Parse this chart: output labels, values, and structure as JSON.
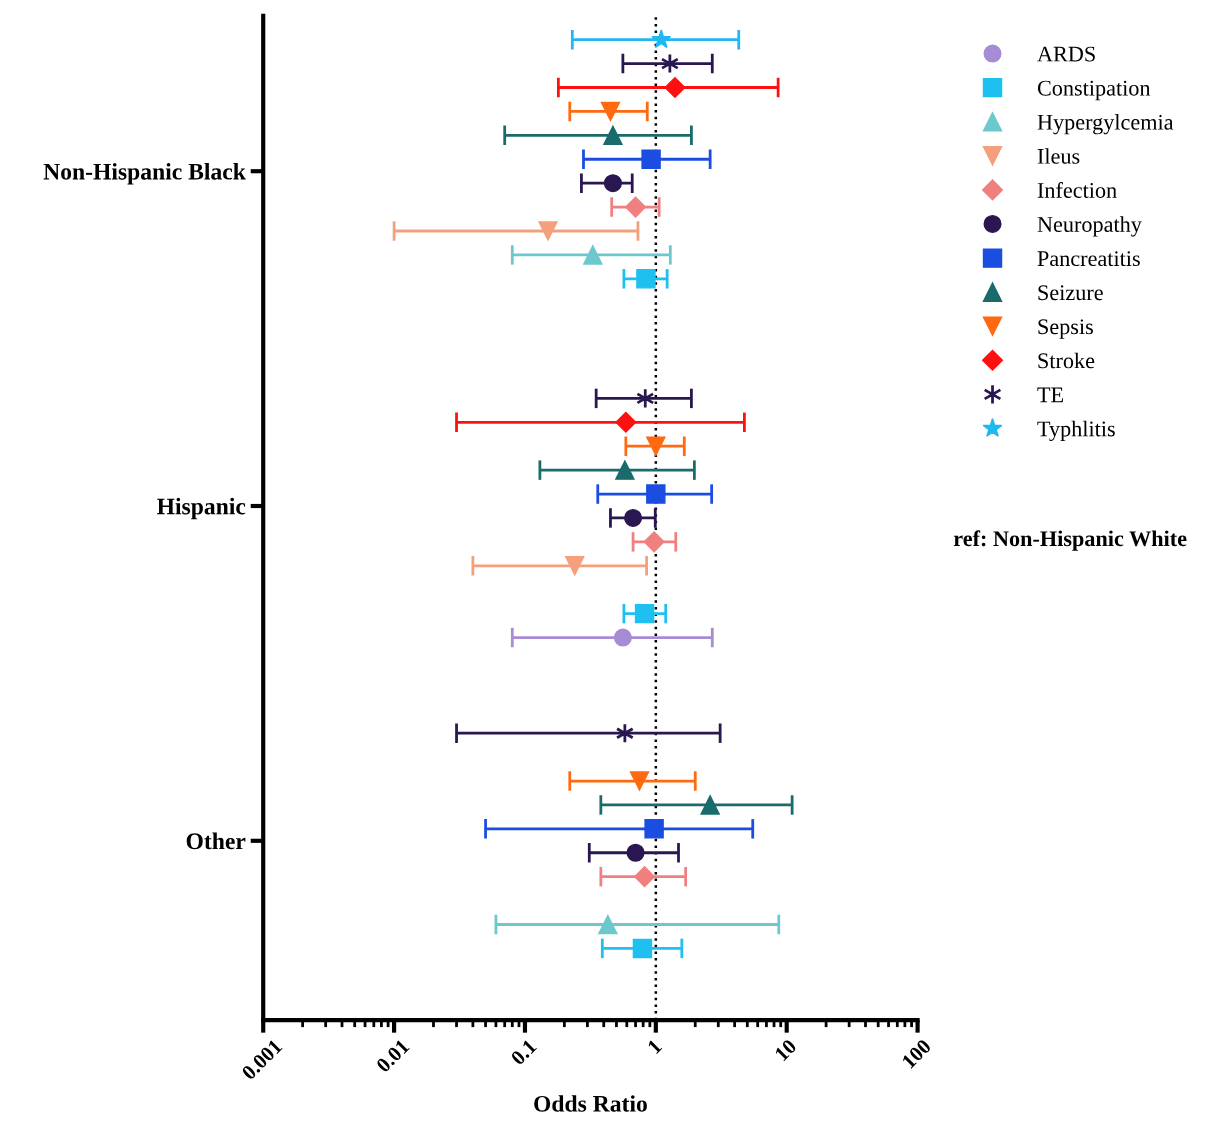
{
  "chart_data": {
    "type": "scatter",
    "orientation": "horizontal",
    "xlabel": "Odds Ratio",
    "log": "x",
    "grid": false,
    "legend": "right",
    "xlim": [
      0.001,
      100
    ],
    "xticks": [
      0.001,
      0.01,
      0.1,
      1,
      10,
      100
    ],
    "categories": [
      null,
      null,
      null,
      null,
      null,
      null,
      null,
      null,
      null,
      null,
      null,
      "Non-Hispanic Black",
      null,
      null,
      null,
      null,
      null,
      null,
      null,
      null,
      null,
      null,
      null,
      null,
      null,
      null,
      null,
      null,
      null,
      null,
      null,
      null,
      null,
      null,
      null,
      null,
      null,
      null,
      null,
      "Hispanic",
      null,
      null,
      null,
      null,
      null,
      null,
      null,
      null,
      null,
      null,
      null,
      null,
      null,
      null,
      null,
      null,
      null,
      null,
      null,
      null,
      null,
      null,
      null,
      null,
      null,
      null,
      null,
      "Other",
      null,
      null,
      null,
      null,
      null,
      null,
      null,
      null,
      null
    ],
    "ref_lines": [
      {
        "axis": "x",
        "value": 1,
        "label": null,
        "color": "#000000",
        "line_style": "dotted"
      }
    ],
    "annotations": [
      "ref: Non-Hispanic White"
    ],
    "series": [
      {
        "name": "ARDS",
        "color": "#a78bd4",
        "marker": "circle",
        "values": [
          null,
          null,
          null,
          null,
          null,
          null,
          null,
          null,
          null,
          null,
          null,
          null,
          null,
          null,
          null,
          null,
          null,
          null,
          null,
          null,
          null,
          null,
          null,
          null,
          null,
          null,
          null,
          null,
          null,
          null,
          null,
          null,
          null,
          null,
          null,
          null,
          null,
          null,
          null,
          null,
          null,
          null,
          null,
          null,
          null,
          null,
          null,
          null,
          null,
          null,
          0.56,
          null,
          null,
          null,
          null,
          null,
          null,
          null,
          null,
          null,
          null,
          null,
          null,
          null,
          null,
          null,
          null,
          null,
          null,
          null,
          null,
          null,
          null,
          null,
          null,
          null,
          null
        ],
        "errors": [
          null,
          null,
          null,
          null,
          null,
          null,
          null,
          null,
          null,
          null,
          null,
          null,
          null,
          null,
          null,
          null,
          null,
          null,
          null,
          null,
          null,
          null,
          null,
          null,
          null,
          null,
          null,
          null,
          null,
          null,
          null,
          null,
          null,
          null,
          null,
          null,
          null,
          null,
          null,
          null,
          null,
          null,
          null,
          null,
          null,
          null,
          null,
          null,
          null,
          null,
          [
            0.08,
            2.7
          ],
          null,
          null,
          null,
          null,
          null,
          null,
          null,
          null,
          null,
          null,
          null,
          null,
          null,
          null,
          null,
          null,
          null,
          null,
          null,
          null,
          null,
          null,
          null,
          null,
          null,
          null
        ]
      },
      {
        "name": "Constipation",
        "color": "#1ec0f0",
        "marker": "square",
        "values": [
          null,
          null,
          null,
          null,
          null,
          null,
          null,
          null,
          null,
          null,
          null,
          null,
          null,
          null,
          null,
          null,
          null,
          null,
          null,
          null,
          0.84,
          null,
          null,
          null,
          null,
          null,
          null,
          null,
          null,
          null,
          null,
          null,
          null,
          null,
          null,
          null,
          null,
          null,
          null,
          null,
          null,
          null,
          null,
          null,
          null,
          null,
          null,
          null,
          0.82,
          null,
          null,
          null,
          null,
          null,
          null,
          null,
          null,
          null,
          null,
          null,
          null,
          null,
          null,
          null,
          null,
          null,
          null,
          null,
          null,
          null,
          null,
          null,
          null,
          null,
          null,
          null,
          0.79
        ],
        "errors": [
          null,
          null,
          null,
          null,
          null,
          null,
          null,
          null,
          null,
          null,
          null,
          null,
          null,
          null,
          null,
          null,
          null,
          null,
          null,
          null,
          [
            0.57,
            1.22
          ],
          null,
          null,
          null,
          null,
          null,
          null,
          null,
          null,
          null,
          null,
          null,
          null,
          null,
          null,
          null,
          null,
          null,
          null,
          null,
          null,
          null,
          null,
          null,
          null,
          null,
          null,
          null,
          [
            0.57,
            1.19
          ],
          null,
          null,
          null,
          null,
          null,
          null,
          null,
          null,
          null,
          null,
          null,
          null,
          null,
          null,
          null,
          null,
          null,
          null,
          null,
          null,
          null,
          null,
          null,
          null,
          null,
          null,
          null,
          [
            0.39,
            1.58
          ]
        ]
      },
      {
        "name": "Hypergylcemia",
        "color": "#6cc8cc",
        "marker": "triangle",
        "values": [
          null,
          null,
          null,
          null,
          null,
          null,
          null,
          null,
          null,
          null,
          null,
          null,
          null,
          null,
          null,
          null,
          null,
          null,
          0.33,
          null,
          null,
          null,
          null,
          null,
          null,
          null,
          null,
          null,
          null,
          null,
          null,
          null,
          null,
          null,
          null,
          null,
          null,
          null,
          null,
          null,
          null,
          null,
          null,
          null,
          null,
          null,
          null,
          null,
          null,
          null,
          null,
          null,
          null,
          null,
          null,
          null,
          null,
          null,
          null,
          null,
          null,
          null,
          null,
          null,
          null,
          null,
          null,
          null,
          null,
          null,
          null,
          null,
          null,
          null,
          0.43,
          null,
          null
        ],
        "errors": [
          null,
          null,
          null,
          null,
          null,
          null,
          null,
          null,
          null,
          null,
          null,
          null,
          null,
          null,
          null,
          null,
          null,
          null,
          [
            0.08,
            1.29
          ],
          null,
          null,
          null,
          null,
          null,
          null,
          null,
          null,
          null,
          null,
          null,
          null,
          null,
          null,
          null,
          null,
          null,
          null,
          null,
          null,
          null,
          null,
          null,
          null,
          null,
          null,
          null,
          null,
          null,
          null,
          null,
          null,
          null,
          null,
          null,
          null,
          null,
          null,
          null,
          null,
          null,
          null,
          null,
          null,
          null,
          null,
          null,
          null,
          null,
          null,
          null,
          null,
          null,
          null,
          null,
          [
            0.06,
            8.7
          ],
          null,
          null
        ]
      },
      {
        "name": "Ileus",
        "color": "#f4a07c",
        "marker": "triangle_down",
        "values": [
          null,
          null,
          null,
          null,
          null,
          null,
          null,
          null,
          null,
          null,
          null,
          null,
          null,
          null,
          null,
          null,
          0.15,
          null,
          null,
          null,
          null,
          null,
          null,
          null,
          null,
          null,
          null,
          null,
          null,
          null,
          null,
          null,
          null,
          null,
          null,
          null,
          null,
          null,
          null,
          null,
          null,
          null,
          null,
          null,
          0.24,
          null,
          null,
          null,
          null,
          null,
          null,
          null,
          null,
          null,
          null,
          null,
          null,
          null,
          null,
          null,
          null,
          null,
          null,
          null,
          null,
          null,
          null,
          null,
          null,
          null,
          null,
          null,
          null,
          null,
          null,
          null,
          null
        ],
        "errors": [
          null,
          null,
          null,
          null,
          null,
          null,
          null,
          null,
          null,
          null,
          null,
          null,
          null,
          null,
          null,
          null,
          [
            0.01,
            0.73
          ],
          null,
          null,
          null,
          null,
          null,
          null,
          null,
          null,
          null,
          null,
          null,
          null,
          null,
          null,
          null,
          null,
          null,
          null,
          null,
          null,
          null,
          null,
          null,
          null,
          null,
          null,
          null,
          [
            0.04,
            0.85
          ],
          null,
          null,
          null,
          null,
          null,
          null,
          null,
          null,
          null,
          null,
          null,
          null,
          null,
          null,
          null,
          null,
          null,
          null,
          null,
          null,
          null,
          null,
          null,
          null,
          null,
          null,
          null,
          null,
          null,
          null,
          null,
          null
        ]
      },
      {
        "name": "Infection",
        "color": "#f08080",
        "marker": "diamond",
        "values": [
          null,
          null,
          null,
          null,
          null,
          null,
          null,
          null,
          null,
          null,
          null,
          null,
          null,
          null,
          0.7,
          null,
          null,
          null,
          null,
          null,
          null,
          null,
          null,
          null,
          null,
          null,
          null,
          null,
          null,
          null,
          null,
          null,
          null,
          null,
          null,
          null,
          null,
          null,
          null,
          null,
          null,
          null,
          0.97,
          null,
          null,
          null,
          null,
          null,
          null,
          null,
          null,
          null,
          null,
          null,
          null,
          null,
          null,
          null,
          null,
          null,
          null,
          null,
          null,
          null,
          null,
          null,
          null,
          null,
          null,
          null,
          0.82,
          null,
          null,
          null,
          null,
          null,
          null
        ],
        "errors": [
          null,
          null,
          null,
          null,
          null,
          null,
          null,
          null,
          null,
          null,
          null,
          null,
          null,
          null,
          [
            0.46,
            1.06
          ],
          null,
          null,
          null,
          null,
          null,
          null,
          null,
          null,
          null,
          null,
          null,
          null,
          null,
          null,
          null,
          null,
          null,
          null,
          null,
          null,
          null,
          null,
          null,
          null,
          null,
          null,
          null,
          [
            0.67,
            1.42
          ],
          null,
          null,
          null,
          null,
          null,
          null,
          null,
          null,
          null,
          null,
          null,
          null,
          null,
          null,
          null,
          null,
          null,
          null,
          null,
          null,
          null,
          null,
          null,
          null,
          null,
          null,
          null,
          [
            0.38,
            1.69
          ],
          null,
          null,
          null,
          null,
          null,
          null
        ]
      },
      {
        "name": "Neuropathy",
        "color": "#2a1650",
        "marker": "circle",
        "values": [
          null,
          null,
          null,
          null,
          null,
          null,
          null,
          null,
          null,
          null,
          null,
          null,
          0.47,
          null,
          null,
          null,
          null,
          null,
          null,
          null,
          null,
          null,
          null,
          null,
          null,
          null,
          null,
          null,
          null,
          null,
          null,
          null,
          null,
          null,
          null,
          null,
          null,
          null,
          null,
          null,
          0.67,
          null,
          null,
          null,
          null,
          null,
          null,
          null,
          null,
          null,
          null,
          null,
          null,
          null,
          null,
          null,
          null,
          null,
          null,
          null,
          null,
          null,
          null,
          null,
          null,
          null,
          null,
          null,
          0.7,
          null,
          null,
          null,
          null,
          null,
          null,
          null,
          null
        ],
        "errors": [
          null,
          null,
          null,
          null,
          null,
          null,
          null,
          null,
          null,
          null,
          null,
          null,
          [
            0.27,
            0.66
          ],
          null,
          null,
          null,
          null,
          null,
          null,
          null,
          null,
          null,
          null,
          null,
          null,
          null,
          null,
          null,
          null,
          null,
          null,
          null,
          null,
          null,
          null,
          null,
          null,
          null,
          null,
          null,
          [
            0.45,
            0.99
          ],
          null,
          null,
          null,
          null,
          null,
          null,
          null,
          null,
          null,
          null,
          null,
          null,
          null,
          null,
          null,
          null,
          null,
          null,
          null,
          null,
          null,
          null,
          null,
          null,
          null,
          null,
          null,
          [
            0.31,
            1.49
          ],
          null,
          null,
          null,
          null,
          null,
          null,
          null,
          null
        ]
      },
      {
        "name": "Pancreatitis",
        "color": "#1a4de0",
        "marker": "square",
        "values": [
          null,
          null,
          null,
          null,
          null,
          null,
          null,
          null,
          null,
          null,
          0.92,
          null,
          null,
          null,
          null,
          null,
          null,
          null,
          null,
          null,
          null,
          null,
          null,
          null,
          null,
          null,
          null,
          null,
          null,
          null,
          null,
          null,
          null,
          null,
          null,
          null,
          null,
          null,
          1.0,
          null,
          null,
          null,
          null,
          null,
          null,
          null,
          null,
          null,
          null,
          null,
          null,
          null,
          null,
          null,
          null,
          null,
          null,
          null,
          null,
          null,
          null,
          null,
          null,
          null,
          null,
          null,
          0.97,
          null,
          null,
          null,
          null,
          null,
          null,
          null,
          null,
          null,
          null
        ],
        "errors": [
          null,
          null,
          null,
          null,
          null,
          null,
          null,
          null,
          null,
          null,
          [
            0.28,
            2.6
          ],
          null,
          null,
          null,
          null,
          null,
          null,
          null,
          null,
          null,
          null,
          null,
          null,
          null,
          null,
          null,
          null,
          null,
          null,
          null,
          null,
          null,
          null,
          null,
          null,
          null,
          null,
          null,
          [
            0.36,
            2.67
          ],
          null,
          null,
          null,
          null,
          null,
          null,
          null,
          null,
          null,
          null,
          null,
          null,
          null,
          null,
          null,
          null,
          null,
          null,
          null,
          null,
          null,
          null,
          null,
          null,
          null,
          null,
          null,
          [
            0.05,
            5.5
          ],
          null,
          null,
          null,
          null,
          null,
          null,
          null,
          null,
          null,
          null
        ]
      },
      {
        "name": "Seizure",
        "color": "#1a6b6b",
        "marker": "triangle",
        "values": [
          null,
          null,
          null,
          null,
          null,
          null,
          null,
          null,
          0.47,
          null,
          null,
          null,
          null,
          null,
          null,
          null,
          null,
          null,
          null,
          null,
          null,
          null,
          null,
          null,
          null,
          null,
          null,
          null,
          null,
          null,
          null,
          null,
          null,
          null,
          null,
          null,
          0.58,
          null,
          null,
          null,
          null,
          null,
          null,
          null,
          null,
          null,
          null,
          null,
          null,
          null,
          null,
          null,
          null,
          null,
          null,
          null,
          null,
          null,
          null,
          null,
          null,
          null,
          null,
          null,
          2.6,
          null,
          null,
          null,
          null,
          null,
          null,
          null,
          null,
          null,
          null,
          null,
          null
        ],
        "errors": [
          null,
          null,
          null,
          null,
          null,
          null,
          null,
          null,
          [
            0.07,
            1.87
          ],
          null,
          null,
          null,
          null,
          null,
          null,
          null,
          null,
          null,
          null,
          null,
          null,
          null,
          null,
          null,
          null,
          null,
          null,
          null,
          null,
          null,
          null,
          null,
          null,
          null,
          null,
          null,
          [
            0.13,
            1.97
          ],
          null,
          null,
          null,
          null,
          null,
          null,
          null,
          null,
          null,
          null,
          null,
          null,
          null,
          null,
          null,
          null,
          null,
          null,
          null,
          null,
          null,
          null,
          null,
          null,
          null,
          null,
          null,
          [
            0.38,
            11
          ],
          null,
          null,
          null,
          null,
          null,
          null,
          null,
          null,
          null,
          null,
          null,
          null
        ]
      },
      {
        "name": "Sepsis",
        "color": "#ff6a10",
        "marker": "triangle_down",
        "values": [
          null,
          null,
          null,
          null,
          null,
          null,
          0.45,
          null,
          null,
          null,
          null,
          null,
          null,
          null,
          null,
          null,
          null,
          null,
          null,
          null,
          null,
          null,
          null,
          null,
          null,
          null,
          null,
          null,
          null,
          null,
          null,
          null,
          null,
          null,
          1.0,
          null,
          null,
          null,
          null,
          null,
          null,
          null,
          null,
          null,
          null,
          null,
          null,
          null,
          null,
          null,
          null,
          null,
          null,
          null,
          null,
          null,
          null,
          null,
          null,
          null,
          null,
          null,
          0.75,
          null,
          null,
          null,
          null,
          null,
          null,
          null,
          null,
          null,
          null,
          null,
          null,
          null,
          null
        ],
        "errors": [
          null,
          null,
          null,
          null,
          null,
          null,
          [
            0.22,
            0.86
          ],
          null,
          null,
          null,
          null,
          null,
          null,
          null,
          null,
          null,
          null,
          null,
          null,
          null,
          null,
          null,
          null,
          null,
          null,
          null,
          null,
          null,
          null,
          null,
          null,
          null,
          null,
          null,
          [
            0.59,
            1.65
          ],
          null,
          null,
          null,
          null,
          null,
          null,
          null,
          null,
          null,
          null,
          null,
          null,
          null,
          null,
          null,
          null,
          null,
          null,
          null,
          null,
          null,
          null,
          null,
          null,
          null,
          null,
          null,
          [
            0.22,
            2.0
          ],
          null,
          null,
          null,
          null,
          null,
          null,
          null,
          null,
          null,
          null,
          null,
          null,
          null,
          null
        ]
      },
      {
        "name": "Stroke",
        "color": "#ff1010",
        "marker": "diamond",
        "values": [
          null,
          null,
          null,
          null,
          1.4,
          null,
          null,
          null,
          null,
          null,
          null,
          null,
          null,
          null,
          null,
          null,
          null,
          null,
          null,
          null,
          null,
          null,
          null,
          null,
          null,
          null,
          null,
          null,
          null,
          null,
          null,
          null,
          0.59,
          null,
          null,
          null,
          null,
          null,
          null,
          null,
          null,
          null,
          null,
          null,
          null,
          null,
          null,
          null,
          null,
          null,
          null,
          null,
          null,
          null,
          null,
          null,
          null,
          null,
          null,
          null,
          null,
          null,
          null,
          null,
          null,
          null,
          null,
          null,
          null,
          null,
          null,
          null,
          null,
          null,
          null,
          null,
          null
        ],
        "errors": [
          null,
          null,
          null,
          null,
          [
            0.18,
            8.6
          ],
          null,
          null,
          null,
          null,
          null,
          null,
          null,
          null,
          null,
          null,
          null,
          null,
          null,
          null,
          null,
          null,
          null,
          null,
          null,
          null,
          null,
          null,
          null,
          null,
          null,
          null,
          null,
          [
            0.03,
            4.75
          ],
          null,
          null,
          null,
          null,
          null,
          null,
          null,
          null,
          null,
          null,
          null,
          null,
          null,
          null,
          null,
          null,
          null,
          null,
          null,
          null,
          null,
          null,
          null,
          null,
          null,
          null,
          null,
          null,
          null,
          null,
          null,
          null,
          null,
          null,
          null,
          null,
          null,
          null,
          null,
          null,
          null,
          null,
          null,
          null
        ]
      },
      {
        "name": "TE",
        "color": "#2a1650",
        "marker": "cross",
        "values": [
          null,
          null,
          1.28,
          null,
          null,
          null,
          null,
          null,
          null,
          null,
          null,
          null,
          null,
          null,
          null,
          null,
          null,
          null,
          null,
          null,
          null,
          null,
          null,
          null,
          null,
          null,
          null,
          null,
          null,
          null,
          0.83,
          null,
          null,
          null,
          null,
          null,
          null,
          null,
          null,
          null,
          null,
          null,
          null,
          null,
          null,
          null,
          null,
          null,
          null,
          null,
          null,
          null,
          null,
          null,
          null,
          null,
          null,
          null,
          0.58,
          null,
          null,
          null,
          null,
          null,
          null,
          null,
          null,
          null,
          null,
          null,
          null,
          null,
          null,
          null,
          null,
          null,
          null
        ],
        "errors": [
          null,
          null,
          [
            0.56,
            2.7
          ],
          null,
          null,
          null,
          null,
          null,
          null,
          null,
          null,
          null,
          null,
          null,
          null,
          null,
          null,
          null,
          null,
          null,
          null,
          null,
          null,
          null,
          null,
          null,
          null,
          null,
          null,
          null,
          [
            0.35,
            1.87
          ],
          null,
          null,
          null,
          null,
          null,
          null,
          null,
          null,
          null,
          null,
          null,
          null,
          null,
          null,
          null,
          null,
          null,
          null,
          null,
          null,
          null,
          null,
          null,
          null,
          null,
          null,
          null,
          [
            0.03,
            3.1
          ],
          null,
          null,
          null,
          null,
          null,
          null,
          null,
          null,
          null,
          null,
          null,
          null,
          null,
          null,
          null,
          null,
          null,
          null
        ]
      },
      {
        "name": "Typhlitis",
        "color": "#20b8f0",
        "marker": "star",
        "values": [
          1.1,
          null,
          null,
          null,
          null,
          null,
          null,
          null,
          null,
          null,
          null,
          null,
          null,
          null,
          null,
          null,
          null,
          null,
          null,
          null,
          null,
          null,
          null,
          null,
          null,
          null,
          null,
          null,
          null,
          null,
          null,
          null,
          null,
          null,
          null,
          null,
          null,
          null,
          null,
          null,
          null,
          null,
          null,
          null,
          null,
          null,
          null,
          null,
          null,
          null,
          null,
          null,
          null,
          null,
          null,
          null,
          null,
          null,
          null,
          null,
          null,
          null,
          null,
          null,
          null,
          null,
          null,
          null,
          null,
          null,
          null,
          null,
          null,
          null,
          null,
          null,
          null
        ],
        "errors": [
          [
            0.23,
            4.3
          ],
          null,
          null,
          null,
          null,
          null,
          null,
          null,
          null,
          null,
          null,
          null,
          null,
          null,
          null,
          null,
          null,
          null,
          null,
          null,
          null,
          null,
          null,
          null,
          null,
          null,
          null,
          null,
          null,
          null,
          null,
          null,
          null,
          null,
          null,
          null,
          null,
          null,
          null,
          null,
          null,
          null,
          null,
          null,
          null,
          null,
          null,
          null,
          null,
          null,
          null,
          null,
          null,
          null,
          null,
          null,
          null,
          null,
          null,
          null,
          null,
          null,
          null,
          null,
          null,
          null,
          null,
          null,
          null,
          null,
          null,
          null,
          null,
          null,
          null,
          null,
          null
        ]
      }
    ]
  }
}
